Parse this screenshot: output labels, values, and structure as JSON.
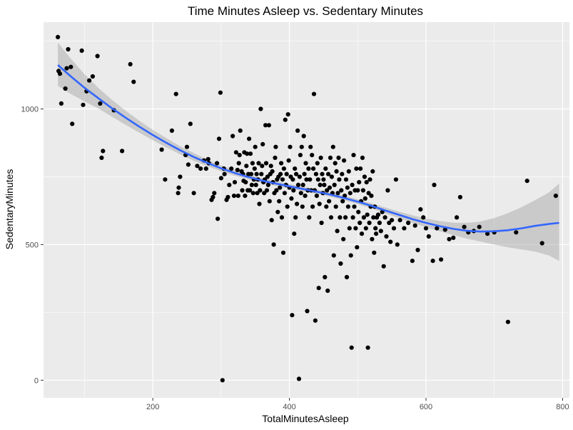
{
  "chart_data": {
    "type": "scatter",
    "title": "Time Minutes Asleep vs. Sedentary Minutes",
    "xlabel": "TotalMinutesAsleep",
    "ylabel": "SedentaryMinutes",
    "xlim": [
      40,
      810
    ],
    "ylim": [
      -65,
      1320
    ],
    "x_ticks": [
      200,
      400,
      600,
      800
    ],
    "y_ticks": [
      0,
      500,
      1000
    ],
    "x_tick_labels": [
      "200",
      "400",
      "600",
      "800"
    ],
    "y_tick_labels": [
      "0",
      "500",
      "1000"
    ],
    "grid": true,
    "legend": "none",
    "colors": {
      "panel_background": "#ebebeb",
      "grid_major": "#ffffff",
      "points": "#000000",
      "smooth_line": "#3366ff",
      "confidence_band": "#999999"
    },
    "points": [
      [
        61,
        1265
      ],
      [
        62,
        1140
      ],
      [
        64,
        1130
      ],
      [
        66,
        1020
      ],
      [
        72,
        1075
      ],
      [
        74,
        1150
      ],
      [
        76,
        1220
      ],
      [
        80,
        1155
      ],
      [
        82,
        945
      ],
      [
        96,
        1215
      ],
      [
        98,
        1015
      ],
      [
        103,
        1065
      ],
      [
        107,
        1105
      ],
      [
        112,
        1120
      ],
      [
        119,
        1195
      ],
      [
        123,
        1020
      ],
      [
        125,
        820
      ],
      [
        127,
        845
      ],
      [
        143,
        995
      ],
      [
        155,
        845
      ],
      [
        167,
        1165
      ],
      [
        172,
        1100
      ],
      [
        213,
        850
      ],
      [
        218,
        740
      ],
      [
        228,
        920
      ],
      [
        234,
        1055
      ],
      [
        237,
        690
      ],
      [
        238,
        710
      ],
      [
        240,
        750
      ],
      [
        248,
        830
      ],
      [
        250,
        860
      ],
      [
        252,
        795
      ],
      [
        255,
        945
      ],
      [
        260,
        690
      ],
      [
        265,
        790
      ],
      [
        270,
        780
      ],
      [
        275,
        810
      ],
      [
        278,
        780
      ],
      [
        281,
        815
      ],
      [
        282,
        800
      ],
      [
        286,
        665
      ],
      [
        288,
        675
      ],
      [
        290,
        690
      ],
      [
        294,
        800
      ],
      [
        295,
        595
      ],
      [
        297,
        890
      ],
      [
        299,
        1060
      ],
      [
        300,
        745
      ],
      [
        302,
        0
      ],
      [
        304,
        780
      ],
      [
        305,
        760
      ],
      [
        308,
        665
      ],
      [
        310,
        675
      ],
      [
        312,
        720
      ],
      [
        315,
        780
      ],
      [
        317,
        900
      ],
      [
        319,
        680
      ],
      [
        320,
        730
      ],
      [
        322,
        840
      ],
      [
        324,
        775
      ],
      [
        325,
        680
      ],
      [
        326,
        800
      ],
      [
        327,
        830
      ],
      [
        328,
        920
      ],
      [
        330,
        770
      ],
      [
        331,
        700
      ],
      [
        332,
        760
      ],
      [
        333,
        735
      ],
      [
        334,
        840
      ],
      [
        335,
        680
      ],
      [
        336,
        730
      ],
      [
        337,
        790
      ],
      [
        338,
        835
      ],
      [
        339,
        700
      ],
      [
        340,
        760
      ],
      [
        341,
        890
      ],
      [
        342,
        700
      ],
      [
        343,
        835
      ],
      [
        344,
        760
      ],
      [
        345,
        720
      ],
      [
        346,
        800
      ],
      [
        347,
        690
      ],
      [
        348,
        740
      ],
      [
        349,
        780
      ],
      [
        350,
        860
      ],
      [
        351,
        720
      ],
      [
        352,
        760
      ],
      [
        353,
        690
      ],
      [
        354,
        740
      ],
      [
        355,
        800
      ],
      [
        356,
        650
      ],
      [
        357,
        700
      ],
      [
        358,
        1000
      ],
      [
        359,
        760
      ],
      [
        360,
        790
      ],
      [
        361,
        870
      ],
      [
        362,
        730
      ],
      [
        363,
        690
      ],
      [
        364,
        740
      ],
      [
        365,
        940
      ],
      [
        366,
        800
      ],
      [
        367,
        700
      ],
      [
        368,
        750
      ],
      [
        369,
        720
      ],
      [
        370,
        940
      ],
      [
        371,
        660
      ],
      [
        372,
        760
      ],
      [
        373,
        790
      ],
      [
        374,
        590
      ],
      [
        375,
        770
      ],
      [
        376,
        730
      ],
      [
        377,
        500
      ],
      [
        378,
        690
      ],
      [
        379,
        820
      ],
      [
        380,
        860
      ],
      [
        381,
        700
      ],
      [
        382,
        740
      ],
      [
        383,
        620
      ],
      [
        384,
        750
      ],
      [
        385,
        660
      ],
      [
        386,
        710
      ],
      [
        387,
        760
      ],
      [
        388,
        800
      ],
      [
        389,
        600
      ],
      [
        390,
        740
      ],
      [
        391,
        470
      ],
      [
        392,
        780
      ],
      [
        393,
        690
      ],
      [
        394,
        960
      ],
      [
        395,
        720
      ],
      [
        396,
        760
      ],
      [
        397,
        640
      ],
      [
        398,
        980
      ],
      [
        399,
        810
      ],
      [
        400,
        710
      ],
      [
        401,
        860
      ],
      [
        402,
        750
      ],
      [
        403,
        670
      ],
      [
        404,
        240
      ],
      [
        405,
        740
      ],
      [
        406,
        700
      ],
      [
        407,
        540
      ],
      [
        408,
        780
      ],
      [
        409,
        600
      ],
      [
        410,
        760
      ],
      [
        411,
        650
      ],
      [
        412,
        920
      ],
      [
        413,
        720
      ],
      [
        414,
        5
      ],
      [
        415,
        750
      ],
      [
        416,
        830
      ],
      [
        417,
        690
      ],
      [
        418,
        860
      ],
      [
        419,
        640
      ],
      [
        420,
        720
      ],
      [
        421,
        900
      ],
      [
        422,
        760
      ],
      [
        423,
        680
      ],
      [
        424,
        800
      ],
      [
        425,
        740
      ],
      [
        426,
        255
      ],
      [
        427,
        700
      ],
      [
        428,
        780
      ],
      [
        429,
        600
      ],
      [
        430,
        740
      ],
      [
        431,
        860
      ],
      [
        432,
        700
      ],
      [
        433,
        830
      ],
      [
        434,
        640
      ],
      [
        435,
        780
      ],
      [
        436,
        1055
      ],
      [
        437,
        700
      ],
      [
        438,
        220
      ],
      [
        439,
        760
      ],
      [
        440,
        680
      ],
      [
        441,
        800
      ],
      [
        442,
        740
      ],
      [
        443,
        340
      ],
      [
        444,
        650
      ],
      [
        445,
        720
      ],
      [
        446,
        820
      ],
      [
        447,
        580
      ],
      [
        448,
        760
      ],
      [
        449,
        690
      ],
      [
        450,
        740
      ],
      [
        451,
        720
      ],
      [
        452,
        380
      ],
      [
        453,
        780
      ],
      [
        454,
        640
      ],
      [
        455,
        700
      ],
      [
        456,
        330
      ],
      [
        457,
        760
      ],
      [
        458,
        660
      ],
      [
        459,
        710
      ],
      [
        460,
        820
      ],
      [
        461,
        600
      ],
      [
        462,
        750
      ],
      [
        463,
        690
      ],
      [
        464,
        860
      ],
      [
        465,
        460
      ],
      [
        466,
        720
      ],
      [
        467,
        800
      ],
      [
        468,
        640
      ],
      [
        469,
        770
      ],
      [
        470,
        550
      ],
      [
        471,
        690
      ],
      [
        472,
        820
      ],
      [
        473,
        740
      ],
      [
        474,
        600
      ],
      [
        475,
        430
      ],
      [
        476,
        700
      ],
      [
        477,
        760
      ],
      [
        478,
        660
      ],
      [
        479,
        520
      ],
      [
        480,
        810
      ],
      [
        481,
        680
      ],
      [
        482,
        600
      ],
      [
        483,
        740
      ],
      [
        484,
        380
      ],
      [
        485,
        710
      ],
      [
        486,
        640
      ],
      [
        487,
        770
      ],
      [
        488,
        560
      ],
      [
        489,
        690
      ],
      [
        490,
        460
      ],
      [
        491,
        120
      ],
      [
        492,
        720
      ],
      [
        493,
        600
      ],
      [
        494,
        830
      ],
      [
        495,
        640
      ],
      [
        496,
        700
      ],
      [
        497,
        560
      ],
      [
        498,
        780
      ],
      [
        499,
        490
      ],
      [
        500,
        700
      ],
      [
        501,
        620
      ],
      [
        502,
        730
      ],
      [
        503,
        580
      ],
      [
        504,
        780
      ],
      [
        505,
        660
      ],
      [
        506,
        540
      ],
      [
        507,
        820
      ],
      [
        508,
        700
      ],
      [
        509,
        600
      ],
      [
        510,
        750
      ],
      [
        511,
        670
      ],
      [
        512,
        560
      ],
      [
        513,
        730
      ],
      [
        514,
        610
      ],
      [
        515,
        120
      ],
      [
        516,
        690
      ],
      [
        517,
        580
      ],
      [
        518,
        740
      ],
      [
        519,
        640
      ],
      [
        520,
        680
      ],
      [
        521,
        520
      ],
      [
        522,
        770
      ],
      [
        523,
        600
      ],
      [
        524,
        470
      ],
      [
        525,
        640
      ],
      [
        526,
        560
      ],
      [
        527,
        540
      ],
      [
        528,
        600
      ],
      [
        530,
        610
      ],
      [
        532,
        580
      ],
      [
        534,
        550
      ],
      [
        536,
        620
      ],
      [
        538,
        420
      ],
      [
        540,
        600
      ],
      [
        542,
        530
      ],
      [
        544,
        700
      ],
      [
        546,
        580
      ],
      [
        548,
        510
      ],
      [
        550,
        590
      ],
      [
        553,
        560
      ],
      [
        556,
        740
      ],
      [
        558,
        500
      ],
      [
        562,
        590
      ],
      [
        568,
        560
      ],
      [
        574,
        580
      ],
      [
        580,
        440
      ],
      [
        584,
        570
      ],
      [
        588,
        480
      ],
      [
        592,
        630
      ],
      [
        596,
        600
      ],
      [
        600,
        560
      ],
      [
        604,
        530
      ],
      [
        610,
        440
      ],
      [
        612,
        720
      ],
      [
        616,
        560
      ],
      [
        622,
        445
      ],
      [
        628,
        555
      ],
      [
        634,
        520
      ],
      [
        640,
        525
      ],
      [
        645,
        600
      ],
      [
        650,
        675
      ],
      [
        656,
        565
      ],
      [
        662,
        545
      ],
      [
        670,
        550
      ],
      [
        678,
        565
      ],
      [
        690,
        540
      ],
      [
        700,
        545
      ],
      [
        720,
        215
      ],
      [
        732,
        545
      ],
      [
        748,
        735
      ],
      [
        770,
        505
      ],
      [
        790,
        680
      ]
    ],
    "smooth_line": [
      [
        61,
        1162
      ],
      [
        80,
        1120
      ],
      [
        100,
        1078
      ],
      [
        120,
        1040
      ],
      [
        140,
        1003
      ],
      [
        160,
        968
      ],
      [
        180,
        935
      ],
      [
        200,
        904
      ],
      [
        220,
        875
      ],
      [
        240,
        848
      ],
      [
        260,
        823
      ],
      [
        280,
        801
      ],
      [
        300,
        781
      ],
      [
        320,
        764
      ],
      [
        340,
        749
      ],
      [
        360,
        736
      ],
      [
        380,
        725
      ],
      [
        400,
        715
      ],
      [
        420,
        705
      ],
      [
        440,
        695
      ],
      [
        460,
        684
      ],
      [
        480,
        672
      ],
      [
        500,
        658
      ],
      [
        520,
        643
      ],
      [
        540,
        626
      ],
      [
        560,
        610
      ],
      [
        580,
        594
      ],
      [
        600,
        580
      ],
      [
        620,
        568
      ],
      [
        640,
        558
      ],
      [
        660,
        551
      ],
      [
        680,
        548
      ],
      [
        700,
        549
      ],
      [
        720,
        553
      ],
      [
        740,
        560
      ],
      [
        760,
        569
      ],
      [
        780,
        576
      ],
      [
        795,
        580
      ]
    ],
    "band_upper": [
      [
        61,
        1245
      ],
      [
        80,
        1185
      ],
      [
        100,
        1128
      ],
      [
        120,
        1078
      ],
      [
        140,
        1034
      ],
      [
        160,
        994
      ],
      [
        180,
        957
      ],
      [
        200,
        923
      ],
      [
        220,
        892
      ],
      [
        240,
        863
      ],
      [
        260,
        837
      ],
      [
        280,
        813
      ],
      [
        300,
        792
      ],
      [
        320,
        774
      ],
      [
        340,
        758
      ],
      [
        360,
        745
      ],
      [
        380,
        734
      ],
      [
        400,
        723
      ],
      [
        420,
        713
      ],
      [
        440,
        703
      ],
      [
        460,
        692
      ],
      [
        480,
        680
      ],
      [
        500,
        667
      ],
      [
        520,
        652
      ],
      [
        540,
        637
      ],
      [
        560,
        622
      ],
      [
        580,
        608
      ],
      [
        600,
        596
      ],
      [
        620,
        587
      ],
      [
        640,
        581
      ],
      [
        660,
        580
      ],
      [
        680,
        585
      ],
      [
        700,
        598
      ],
      [
        720,
        616
      ],
      [
        740,
        638
      ],
      [
        760,
        664
      ],
      [
        780,
        692
      ],
      [
        795,
        725
      ]
    ],
    "band_lower": [
      [
        61,
        1085
      ],
      [
        80,
        1055
      ],
      [
        100,
        1028
      ],
      [
        120,
        1002
      ],
      [
        140,
        972
      ],
      [
        160,
        942
      ],
      [
        180,
        913
      ],
      [
        200,
        885
      ],
      [
        220,
        858
      ],
      [
        240,
        833
      ],
      [
        260,
        809
      ],
      [
        280,
        789
      ],
      [
        300,
        770
      ],
      [
        320,
        754
      ],
      [
        340,
        740
      ],
      [
        360,
        727
      ],
      [
        380,
        716
      ],
      [
        400,
        707
      ],
      [
        420,
        697
      ],
      [
        440,
        687
      ],
      [
        460,
        676
      ],
      [
        480,
        664
      ],
      [
        500,
        649
      ],
      [
        520,
        634
      ],
      [
        540,
        615
      ],
      [
        560,
        598
      ],
      [
        580,
        580
      ],
      [
        600,
        564
      ],
      [
        620,
        549
      ],
      [
        640,
        535
      ],
      [
        660,
        522
      ],
      [
        680,
        511
      ],
      [
        700,
        500
      ],
      [
        720,
        490
      ],
      [
        740,
        482
      ],
      [
        760,
        474
      ],
      [
        780,
        460
      ],
      [
        795,
        440
      ]
    ]
  }
}
